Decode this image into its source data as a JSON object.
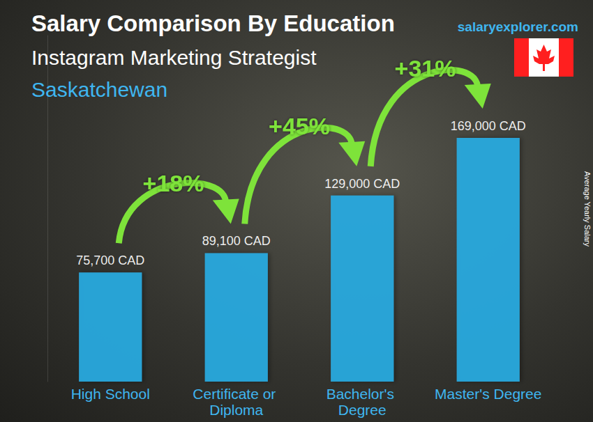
{
  "chart_data": {
    "type": "bar",
    "title": "Salary Comparison By Education",
    "subtitle": "Instagram Marketing Strategist",
    "location": "Saskatchewan",
    "source": "salaryexplorer.com",
    "y_label": "Average Yearly Salary",
    "categories": [
      "High School",
      "Certificate or Diploma",
      "Bachelor's Degree",
      "Master's Degree"
    ],
    "values": [
      75700,
      89100,
      129000,
      169000
    ],
    "value_labels": [
      "75,700 CAD",
      "89,100 CAD",
      "129,000 CAD",
      "169,000 CAD"
    ],
    "annotations": [
      "+18%",
      "+45%",
      "+31%"
    ],
    "color": "#29abe2",
    "ylim": [
      0,
      240000
    ],
    "tick_labels": "x",
    "data_labels": true,
    "grid": false
  }
}
